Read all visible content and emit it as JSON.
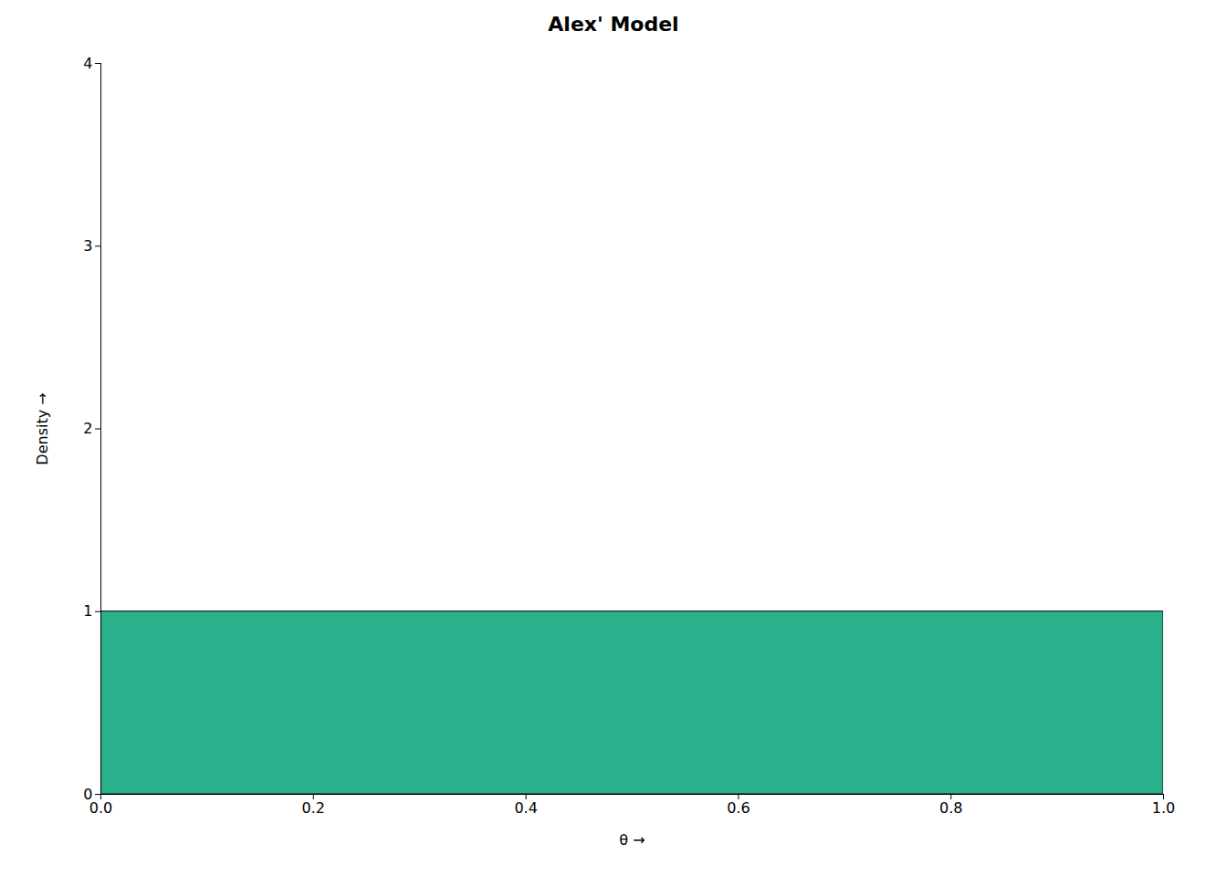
{
  "chart_data": {
    "type": "area",
    "title": "Alex' Model",
    "xlabel": "θ",
    "ylabel": "Density",
    "x": [
      0.0,
      1.0
    ],
    "values": [
      1.0,
      1.0
    ],
    "color": "#2ab08a",
    "xlim": [
      0.0,
      1.0
    ],
    "ylim": [
      0.0,
      4.0
    ],
    "xticks": [
      {
        "value": 0.0,
        "label": "0.0"
      },
      0.2,
      0.4,
      0.6,
      0.8,
      {
        "value": 1.0,
        "label": "1.0"
      }
    ],
    "yticks": [
      0,
      1,
      2,
      3,
      4
    ],
    "grid": false
  }
}
